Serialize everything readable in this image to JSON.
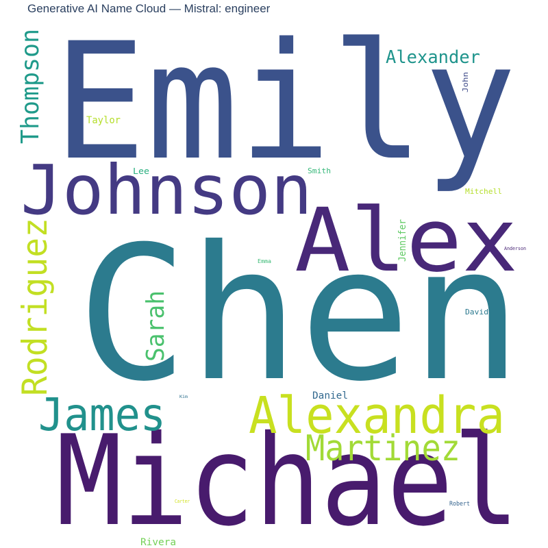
{
  "title": "Generative AI Name Cloud — Mistral: engineer",
  "chart_data": {
    "type": "wordcloud",
    "title": "Generative AI Name Cloud — Mistral: engineer",
    "words": [
      {
        "text": "Emily",
        "color": "#3b528b"
      },
      {
        "text": "Chen",
        "color": "#2c7b8e"
      },
      {
        "text": "Michael",
        "color": "#481b6d"
      },
      {
        "text": "Johnson",
        "color": "#443a83"
      },
      {
        "text": "Alex",
        "color": "#482878"
      },
      {
        "text": "Alexandra",
        "color": "#c8e020"
      },
      {
        "text": "James",
        "color": "#21918c"
      },
      {
        "text": "Rodriguez",
        "color": "#c2df23"
      },
      {
        "text": "Martinez",
        "color": "#a2da37"
      },
      {
        "text": "Thompson",
        "color": "#1f9a8a"
      },
      {
        "text": "Alexander",
        "color": "#1f948c"
      },
      {
        "text": "Sarah",
        "color": "#4ac16d"
      },
      {
        "text": "Taylor",
        "color": "#b5de2b"
      },
      {
        "text": "Jennifer",
        "color": "#5ec962"
      },
      {
        "text": "Rivera",
        "color": "#73d056"
      },
      {
        "text": "Daniel",
        "color": "#31688e"
      },
      {
        "text": "David",
        "color": "#2a788e"
      },
      {
        "text": "Lee",
        "color": "#29af7f"
      },
      {
        "text": "Smith",
        "color": "#35b779"
      },
      {
        "text": "John",
        "color": "#3e4a89"
      },
      {
        "text": "Mitchell",
        "color": "#b5de2b"
      },
      {
        "text": "Emma",
        "color": "#3aba76"
      },
      {
        "text": "Anderson",
        "color": "#482575"
      },
      {
        "text": "Robert",
        "color": "#33628d"
      },
      {
        "text": "Kim",
        "color": "#2d708e"
      },
      {
        "text": "Carter",
        "color": "#d0e11c"
      }
    ]
  }
}
